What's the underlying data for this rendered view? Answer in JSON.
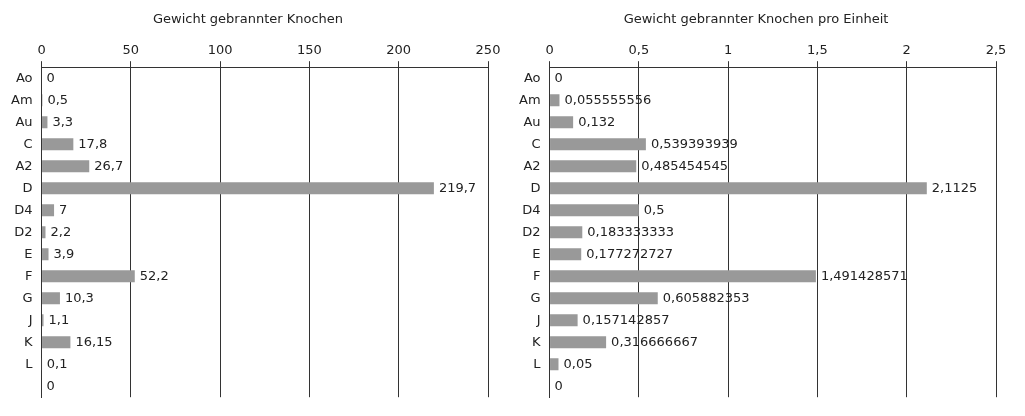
{
  "chart_data": [
    {
      "type": "bar",
      "orientation": "horizontal",
      "title": "Gewicht gebrannter Knochen",
      "categories": [
        "Ao",
        "Am",
        "Au",
        "C",
        "A2",
        "D",
        "D4",
        "D2",
        "E",
        "F",
        "G",
        "J",
        "K",
        "L",
        null
      ],
      "values": [
        0,
        0.5,
        3.3,
        17.8,
        26.7,
        219.7,
        7,
        2.2,
        3.9,
        52.2,
        10.3,
        1.1,
        16.15,
        0.1,
        0
      ],
      "value_labels": [
        "0",
        "0,5",
        "3,3",
        "17,8",
        "26,7",
        "219,7",
        "7",
        "2,2",
        "3,9",
        "52,2",
        "10,3",
        "1,1",
        "16,15",
        "0,1",
        "0"
      ],
      "color": "#999999",
      "xlim": [
        0,
        250
      ],
      "xticks": [
        0,
        50,
        100,
        150,
        200,
        250
      ],
      "grid": "x",
      "legend": false
    },
    {
      "type": "bar",
      "orientation": "horizontal",
      "title": "Gewicht gebrannter Knochen pro Einheit",
      "categories": [
        "Ao",
        "Am",
        "Au",
        "C",
        "A2",
        "D",
        "D4",
        "D2",
        "E",
        "F",
        "G",
        "J",
        "K",
        "L",
        null
      ],
      "values": [
        0,
        0.055555556,
        0.132,
        0.539393939,
        0.485454545,
        2.1125,
        0.5,
        0.183333333,
        0.177272727,
        1.491428571,
        0.605882353,
        0.157142857,
        0.316666667,
        0.05,
        0
      ],
      "value_labels": [
        "0",
        "0,055555556",
        "0,132",
        "0,539393939",
        "0,485454545",
        "2,1125",
        "0,5",
        "0,183333333",
        "0,177272727",
        "1,491428571",
        "0,605882353",
        "0,157142857",
        "0,316666667",
        "0,05",
        "0"
      ],
      "color": "#999999",
      "xlim": [
        0,
        2.5
      ],
      "xticks": [
        0,
        {
          "value": 0.5,
          "label": "0,5"
        },
        1,
        {
          "value": 1.5,
          "label": "1,5"
        },
        2,
        {
          "value": 2.5,
          "label": "2,5"
        }
      ],
      "grid": "x",
      "legend": false
    }
  ]
}
